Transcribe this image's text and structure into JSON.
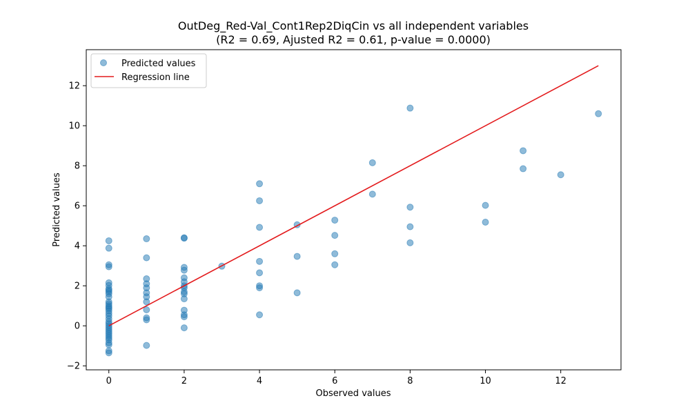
{
  "chart_data": {
    "type": "scatter",
    "title": "OutDeg_Red-Val_Cont1Rep2DiqCin vs all independent variables",
    "subtitle": "(R2 = 0.69, Ajusted R2 = 0.61, p-value = 0.0000)",
    "xlabel": "Observed values",
    "ylabel": "Predicted values",
    "xlim": [
      -0.6,
      13.6
    ],
    "ylim": [
      -2.2,
      13.8
    ],
    "xticks": [
      0,
      2,
      4,
      6,
      8,
      10,
      12
    ],
    "yticks": [
      -2,
      0,
      2,
      4,
      6,
      8,
      10,
      12
    ],
    "grid": false,
    "legend_position": "top-left",
    "series": [
      {
        "name": "Predicted values",
        "kind": "scatter",
        "color": "#1f77b4",
        "points": [
          [
            0,
            4.25
          ],
          [
            0,
            3.88
          ],
          [
            0,
            3.05
          ],
          [
            0,
            2.95
          ],
          [
            0,
            2.15
          ],
          [
            0,
            2.02
          ],
          [
            0,
            1.85
          ],
          [
            0,
            1.78
          ],
          [
            0,
            1.7
          ],
          [
            0,
            1.6
          ],
          [
            0,
            1.45
          ],
          [
            0,
            1.2
          ],
          [
            0,
            1.1
          ],
          [
            0,
            1.0
          ],
          [
            0,
            0.92
          ],
          [
            0,
            0.85
          ],
          [
            0,
            0.75
          ],
          [
            0,
            0.62
          ],
          [
            0,
            0.5
          ],
          [
            0,
            0.35
          ],
          [
            0,
            0.2
          ],
          [
            0,
            0.1
          ],
          [
            0,
            0.0
          ],
          [
            0,
            -0.1
          ],
          [
            0,
            -0.2
          ],
          [
            0,
            -0.3
          ],
          [
            0,
            -0.4
          ],
          [
            0,
            -0.5
          ],
          [
            0,
            -0.6
          ],
          [
            0,
            -0.7
          ],
          [
            0,
            -0.85
          ],
          [
            0,
            -0.95
          ],
          [
            0,
            -1.25
          ],
          [
            0,
            -1.35
          ],
          [
            1,
            4.35
          ],
          [
            1,
            3.4
          ],
          [
            1,
            2.35
          ],
          [
            1,
            2.1
          ],
          [
            1,
            1.9
          ],
          [
            1,
            1.65
          ],
          [
            1,
            1.45
          ],
          [
            1,
            1.2
          ],
          [
            1,
            0.8
          ],
          [
            1,
            0.4
          ],
          [
            1,
            0.3
          ],
          [
            1,
            -0.98
          ],
          [
            2,
            4.4
          ],
          [
            2,
            4.38
          ],
          [
            2,
            2.92
          ],
          [
            2,
            2.78
          ],
          [
            2,
            2.4
          ],
          [
            2,
            2.2
          ],
          [
            2,
            2.0
          ],
          [
            2,
            1.9
          ],
          [
            2,
            1.7
          ],
          [
            2,
            1.6
          ],
          [
            2,
            1.35
          ],
          [
            2,
            0.78
          ],
          [
            2,
            0.55
          ],
          [
            2,
            0.45
          ],
          [
            2,
            -0.1
          ],
          [
            3,
            2.98
          ],
          [
            4,
            7.1
          ],
          [
            4,
            6.25
          ],
          [
            4,
            4.92
          ],
          [
            4,
            3.22
          ],
          [
            4,
            2.65
          ],
          [
            4,
            2.0
          ],
          [
            4,
            1.9
          ],
          [
            4,
            0.55
          ],
          [
            5,
            5.05
          ],
          [
            5,
            3.47
          ],
          [
            5,
            1.65
          ],
          [
            6,
            5.28
          ],
          [
            6,
            4.52
          ],
          [
            6,
            3.6
          ],
          [
            6,
            3.05
          ],
          [
            7,
            8.15
          ],
          [
            7,
            6.58
          ],
          [
            8,
            10.88
          ],
          [
            8,
            5.93
          ],
          [
            8,
            4.95
          ],
          [
            8,
            4.15
          ],
          [
            10,
            6.02
          ],
          [
            10,
            5.18
          ],
          [
            11,
            8.75
          ],
          [
            11,
            7.85
          ],
          [
            12,
            7.55
          ],
          [
            13,
            10.6
          ]
        ]
      },
      {
        "name": "Regression line",
        "kind": "line",
        "color": "#e31a1c",
        "x": [
          0,
          13
        ],
        "y": [
          0,
          13
        ]
      }
    ]
  }
}
